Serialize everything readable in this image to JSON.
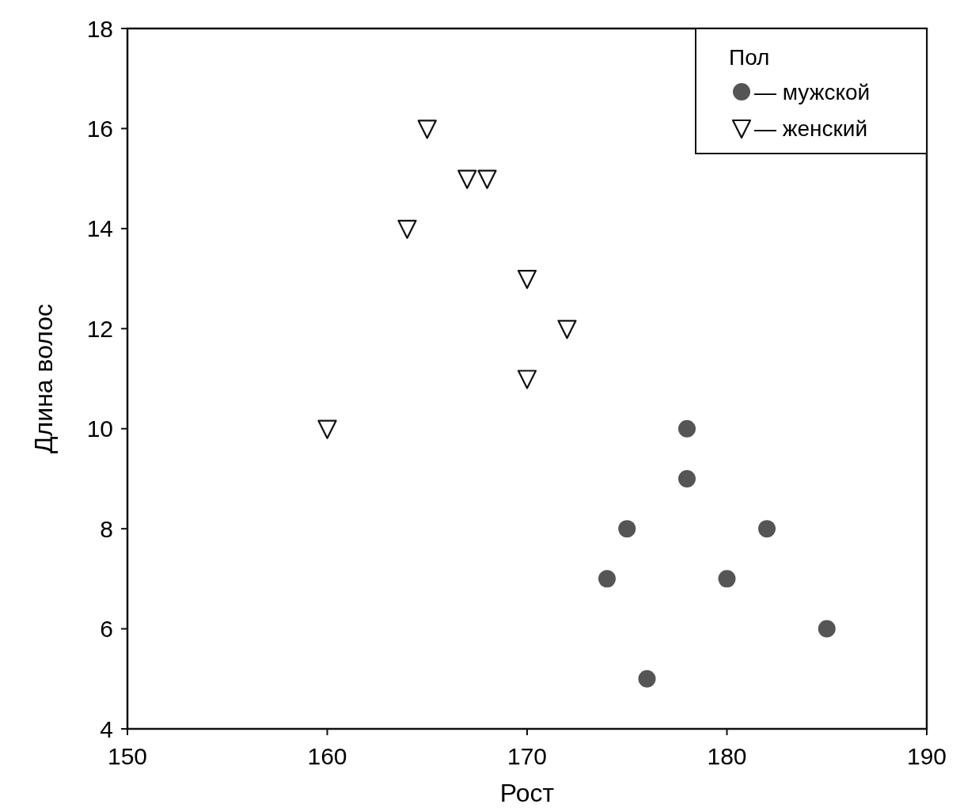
{
  "chart_data": {
    "type": "scatter",
    "xlabel": "Рост",
    "ylabel": "Длина волос",
    "legend_title": "Пол",
    "legend": "top right",
    "grid": false,
    "xlim": [
      150,
      190
    ],
    "xticks": [
      150,
      160,
      170,
      180,
      190
    ],
    "ylim": [
      4,
      18
    ],
    "yticks": [
      4,
      6,
      8,
      10,
      12,
      14,
      16,
      18
    ],
    "series": [
      {
        "name": "— мужской",
        "color": "#555555",
        "marker": "circle",
        "x": [
          178,
          178,
          175,
          182,
          174,
          180,
          185,
          176
        ],
        "values": [
          10,
          9,
          8,
          8,
          7,
          7,
          6,
          5
        ]
      },
      {
        "name": "— женский",
        "color": "#111111",
        "marker": "triangle",
        "x": [
          165,
          167,
          168,
          164,
          170,
          172,
          170,
          160
        ],
        "values": [
          16,
          15,
          15,
          14,
          13,
          12,
          11,
          10
        ]
      }
    ]
  }
}
